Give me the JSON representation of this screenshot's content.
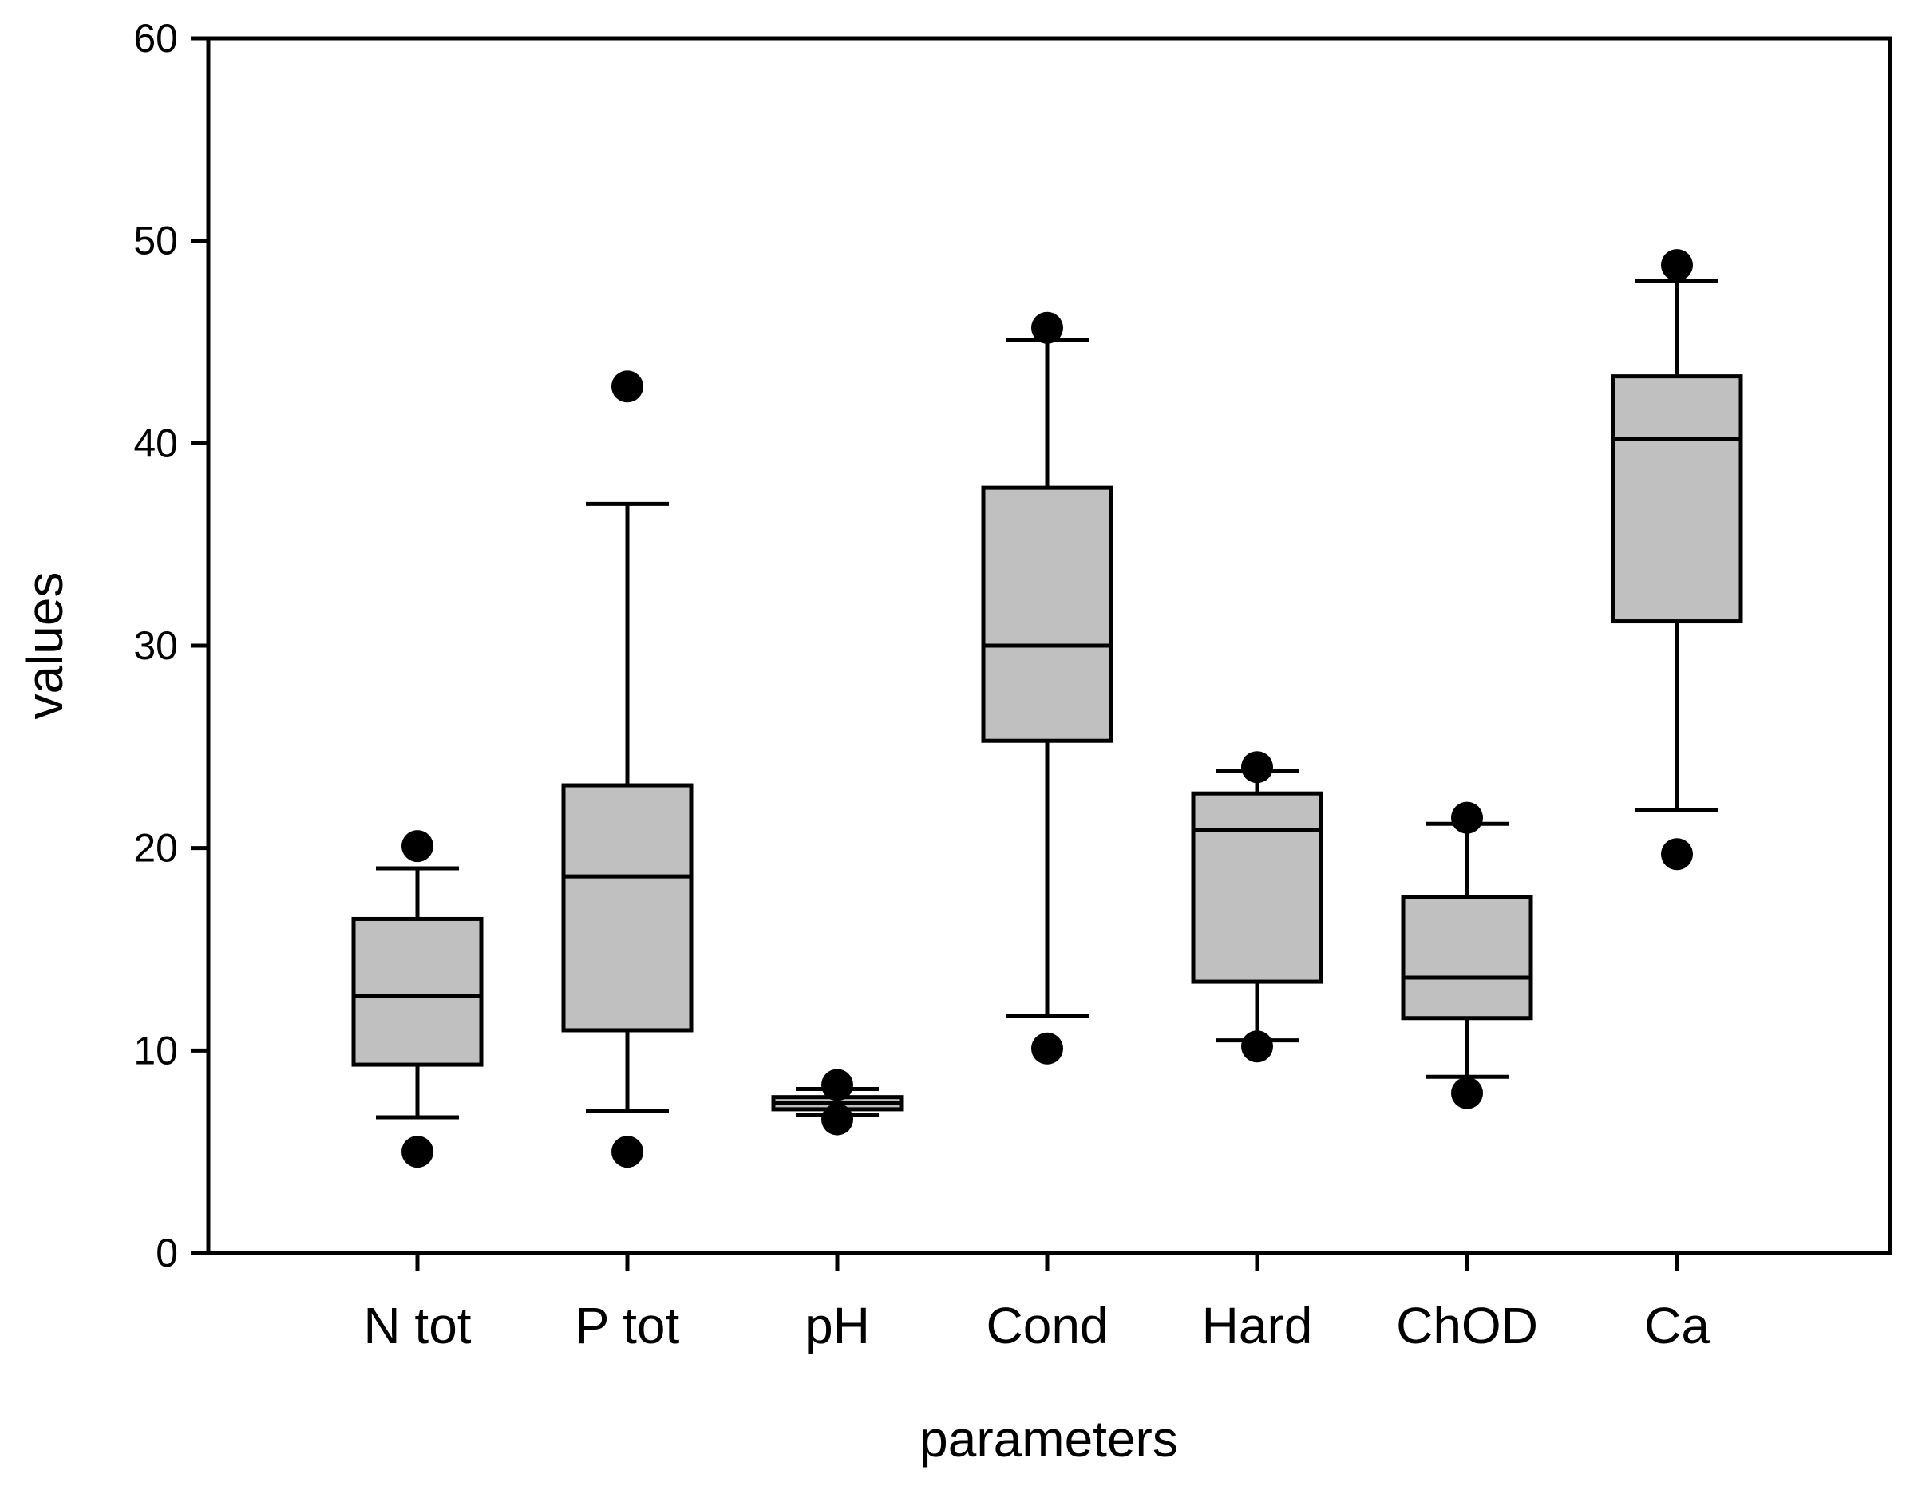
{
  "chart_data": {
    "type": "boxplot",
    "xlabel": "parameters",
    "ylabel": "values",
    "ylim": [
      0,
      60
    ],
    "yticks": [
      0,
      10,
      20,
      30,
      40,
      50,
      60
    ],
    "categories": [
      "N tot",
      "P tot",
      "pH",
      "Cond",
      "Hard",
      "ChOD",
      "Ca"
    ],
    "boxes": [
      {
        "category": "N tot",
        "whisker_low": 6.7,
        "q1": 9.3,
        "median": 12.7,
        "q3": 16.5,
        "whisker_high": 19.0,
        "outliers": [
          5.0,
          20.1
        ]
      },
      {
        "category": "P tot",
        "whisker_low": 7.0,
        "q1": 11.0,
        "median": 18.6,
        "q3": 23.1,
        "whisker_high": 37.0,
        "outliers": [
          5.0,
          42.8
        ]
      },
      {
        "category": "pH",
        "whisker_low": 6.8,
        "q1": 7.1,
        "median": 7.4,
        "q3": 7.7,
        "whisker_high": 8.1,
        "outliers": [
          6.6,
          8.3
        ]
      },
      {
        "category": "Cond",
        "whisker_low": 11.7,
        "q1": 25.3,
        "median": 30.0,
        "q3": 37.8,
        "whisker_high": 45.1,
        "outliers": [
          10.1,
          45.7
        ]
      },
      {
        "category": "Hard",
        "whisker_low": 10.5,
        "q1": 13.4,
        "median": 20.9,
        "q3": 22.7,
        "whisker_high": 23.8,
        "outliers": [
          10.2,
          24.0
        ]
      },
      {
        "category": "ChOD",
        "whisker_low": 8.7,
        "q1": 11.6,
        "median": 13.6,
        "q3": 17.6,
        "whisker_high": 21.2,
        "outliers": [
          7.9,
          21.5
        ]
      },
      {
        "category": "Ca",
        "whisker_low": 21.9,
        "q1": 31.2,
        "median": 40.2,
        "q3": 43.3,
        "whisker_high": 48.0,
        "outliers": [
          19.7,
          48.8
        ]
      }
    ],
    "grid": false,
    "colors": {
      "box_fill": "#c0c0c0",
      "stroke": "#000000",
      "outlier": "#000000",
      "background": "#ffffff"
    }
  }
}
